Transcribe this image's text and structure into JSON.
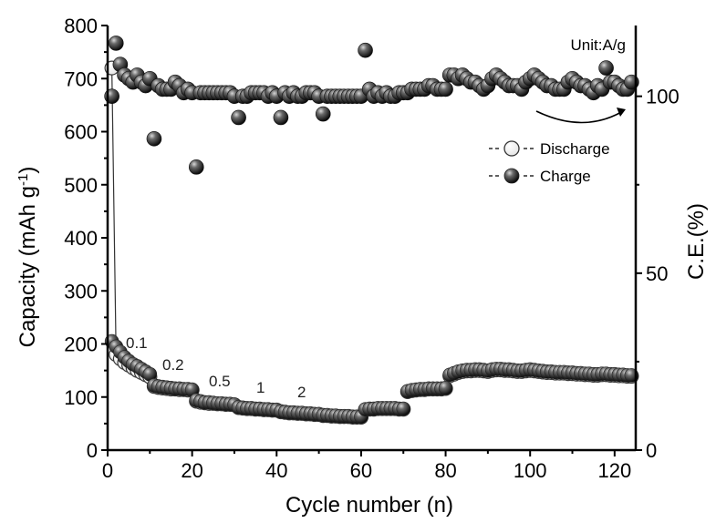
{
  "chart_data": {
    "type": "scatter",
    "title": "",
    "xlabel": "Cycle number (n)",
    "ylabel_left": "Capacity (mAh g",
    "ylabel_left_sup": "-1",
    "ylabel_left_close": ")",
    "ylabel_right": "C.E.(%)",
    "xlim": [
      0,
      125
    ],
    "ylim_left": [
      0,
      800
    ],
    "ylim_right": [
      0,
      120
    ],
    "x_ticks": [
      0,
      20,
      40,
      60,
      80,
      100,
      120
    ],
    "y_left_ticks": [
      0,
      100,
      200,
      300,
      400,
      500,
      600,
      700,
      800
    ],
    "y_right_ticks": [
      0,
      50,
      100
    ],
    "grid": false,
    "legend_position": "center-right",
    "annotations": {
      "unit": "Unit:A/g",
      "rates": [
        "0.1",
        "0.2",
        "0.5",
        "1",
        "2"
      ]
    },
    "series": [
      {
        "name": "Discharge",
        "axis": "left",
        "marker": "open-circle",
        "x": [
          1,
          2,
          3,
          4,
          5,
          6,
          7,
          8,
          9,
          10,
          11,
          12,
          13,
          14,
          15,
          16,
          17,
          18,
          19,
          20,
          21,
          22,
          23,
          24,
          25,
          26,
          27,
          28,
          29,
          30,
          31,
          32,
          33,
          34,
          35,
          36,
          37,
          38,
          39,
          40,
          41,
          42,
          43,
          44,
          45,
          46,
          47,
          48,
          49,
          50,
          51,
          52,
          53,
          54,
          55,
          56,
          57,
          58,
          59,
          60,
          61,
          62,
          63,
          64,
          65,
          66,
          67,
          68,
          69,
          70,
          71,
          72,
          73,
          74,
          75,
          76,
          77,
          78,
          79,
          80,
          81,
          82,
          83,
          84,
          85,
          86,
          87,
          88,
          89,
          90,
          91,
          92,
          93,
          94,
          95,
          96,
          97,
          98,
          99,
          100,
          101,
          102,
          103,
          104,
          105,
          106,
          107,
          108,
          109,
          110,
          111,
          112,
          113,
          114,
          115,
          116,
          117,
          118,
          119,
          120,
          121,
          122,
          123,
          124
        ],
        "values": [
          720,
          180,
          172,
          165,
          160,
          155,
          150,
          146,
          142,
          138,
          120,
          118,
          117,
          116,
          115,
          115,
          114,
          114,
          113,
          113,
          92,
          90,
          89,
          88,
          88,
          87,
          87,
          86,
          86,
          85,
          80,
          79,
          78,
          78,
          77,
          77,
          76,
          76,
          75,
          75,
          72,
          71,
          70,
          70,
          69,
          69,
          68,
          68,
          67,
          67,
          65,
          65,
          64,
          64,
          63,
          63,
          63,
          62,
          62,
          62,
          76,
          77,
          77,
          78,
          78,
          78,
          78,
          78,
          77,
          77,
          110,
          112,
          113,
          114,
          114,
          115,
          115,
          115,
          115,
          116,
          140,
          143,
          146,
          148,
          149,
          149,
          150,
          150,
          149,
          148,
          150,
          151,
          151,
          150,
          150,
          149,
          148,
          148,
          149,
          150,
          149,
          148,
          147,
          146,
          146,
          145,
          145,
          145,
          144,
          144,
          143,
          143,
          142,
          142,
          141,
          141,
          142,
          142,
          141,
          141,
          140,
          140,
          139,
          139
        ]
      },
      {
        "name": "Charge",
        "axis": "left",
        "marker": "filled-sphere",
        "x": [
          1,
          2,
          3,
          4,
          5,
          6,
          7,
          8,
          9,
          10,
          11,
          12,
          13,
          14,
          15,
          16,
          17,
          18,
          19,
          20,
          21,
          22,
          23,
          24,
          25,
          26,
          27,
          28,
          29,
          30,
          31,
          32,
          33,
          34,
          35,
          36,
          37,
          38,
          39,
          40,
          41,
          42,
          43,
          44,
          45,
          46,
          47,
          48,
          49,
          50,
          51,
          52,
          53,
          54,
          55,
          56,
          57,
          58,
          59,
          60,
          61,
          62,
          63,
          64,
          65,
          66,
          67,
          68,
          69,
          70,
          71,
          72,
          73,
          74,
          75,
          76,
          77,
          78,
          79,
          80,
          81,
          82,
          83,
          84,
          85,
          86,
          87,
          88,
          89,
          90,
          91,
          92,
          93,
          94,
          95,
          96,
          97,
          98,
          99,
          100,
          101,
          102,
          103,
          104,
          105,
          106,
          107,
          108,
          109,
          110,
          111,
          112,
          113,
          114,
          115,
          116,
          117,
          118,
          119,
          120,
          121,
          122,
          123,
          124
        ],
        "values": [
          205,
          195,
          185,
          175,
          168,
          162,
          158,
          153,
          148,
          143,
          122,
          120,
          119,
          118,
          117,
          116,
          116,
          115,
          115,
          114,
          94,
          92,
          90,
          90,
          89,
          88,
          88,
          87,
          87,
          86,
          81,
          80,
          79,
          79,
          78,
          78,
          77,
          77,
          76,
          76,
          73,
          72,
          71,
          71,
          70,
          70,
          69,
          69,
          68,
          68,
          66,
          66,
          65,
          65,
          64,
          64,
          64,
          63,
          63,
          63,
          77,
          78,
          78,
          79,
          79,
          79,
          79,
          79,
          78,
          78,
          111,
          113,
          114,
          115,
          115,
          116,
          116,
          116,
          116,
          117,
          142,
          145,
          148,
          150,
          151,
          151,
          152,
          152,
          151,
          150,
          152,
          153,
          153,
          152,
          152,
          151,
          150,
          150,
          151,
          152,
          151,
          150,
          149,
          148,
          148,
          147,
          147,
          147,
          146,
          146,
          145,
          145,
          144,
          144,
          143,
          143,
          144,
          144,
          143,
          143,
          142,
          142,
          141,
          141
        ]
      },
      {
        "name": "C.E.",
        "axis": "right",
        "marker": "filled-sphere",
        "x": [
          1,
          2,
          3,
          4,
          5,
          6,
          7,
          8,
          9,
          10,
          11,
          12,
          13,
          14,
          15,
          16,
          17,
          18,
          19,
          20,
          21,
          22,
          23,
          24,
          25,
          26,
          27,
          28,
          29,
          30,
          31,
          32,
          33,
          34,
          35,
          36,
          37,
          38,
          39,
          40,
          41,
          42,
          43,
          44,
          45,
          46,
          47,
          48,
          49,
          50,
          51,
          52,
          53,
          54,
          55,
          56,
          57,
          58,
          59,
          60,
          61,
          62,
          63,
          64,
          65,
          66,
          67,
          68,
          69,
          70,
          71,
          72,
          73,
          74,
          75,
          76,
          77,
          78,
          79,
          80,
          81,
          82,
          83,
          84,
          85,
          86,
          87,
          88,
          89,
          90,
          91,
          92,
          93,
          94,
          95,
          96,
          97,
          98,
          99,
          100,
          101,
          102,
          103,
          104,
          105,
          106,
          107,
          108,
          109,
          110,
          111,
          112,
          113,
          114,
          115,
          116,
          117,
          118,
          119,
          120,
          121,
          122,
          123,
          124
        ],
        "values": [
          100,
          115,
          109,
          106,
          105,
          104,
          106,
          104,
          103,
          105,
          88,
          103,
          102,
          102,
          102,
          104,
          103,
          101,
          102,
          101,
          80,
          101,
          101,
          101,
          101,
          101,
          101,
          101,
          101,
          100,
          94,
          100,
          100,
          101,
          101,
          101,
          101,
          100,
          101,
          100,
          94,
          101,
          100,
          101,
          100,
          100,
          101,
          101,
          101,
          100,
          95,
          100,
          100,
          100,
          100,
          100,
          100,
          100,
          100,
          100,
          113,
          102,
          100,
          101,
          100,
          101,
          100,
          100,
          101,
          101,
          101,
          102,
          102,
          102,
          102,
          103,
          103,
          102,
          102,
          102,
          106,
          106,
          105,
          106,
          105,
          104,
          104,
          103,
          102,
          103,
          105,
          106,
          105,
          104,
          103,
          103,
          103,
          102,
          104,
          105,
          106,
          105,
          104,
          103,
          103,
          102,
          102,
          102,
          104,
          105,
          104,
          103,
          103,
          102,
          101,
          103,
          102,
          108,
          104,
          104,
          103,
          102,
          102,
          104
        ]
      }
    ]
  }
}
